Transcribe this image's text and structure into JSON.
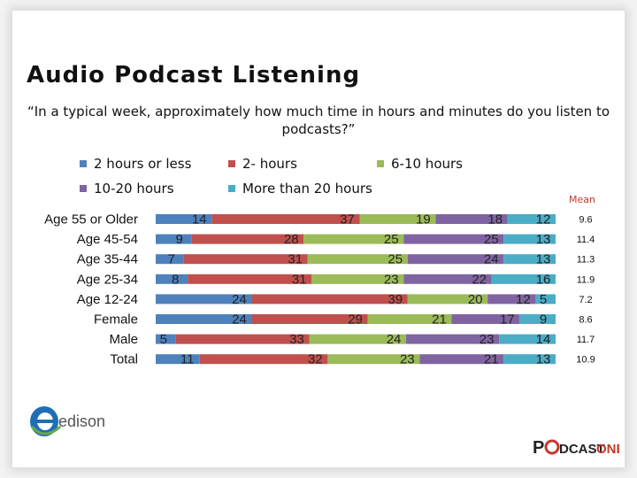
{
  "slide": {
    "title": "Audio Podcast Listening",
    "subtitle": "“In a typical week, approximately how much time in hours and minutes do you listen to podcasts?”",
    "mean_header": "Mean",
    "logo_left_text": "edison",
    "logo_right_text_1": "P",
    "logo_right_text_2": "DCAST",
    "logo_right_text_3": "ONE"
  },
  "legend": [
    {
      "label": "2 hours or less",
      "color": "#4f81bd"
    },
    {
      "label": "2- hours",
      "color": "#c0504d"
    },
    {
      "label": "6-10 hours",
      "color": "#9bbb59"
    },
    {
      "label": "10-20 hours",
      "color": "#8064a2"
    },
    {
      "label": "More than 20 hours",
      "color": "#4bacc6"
    }
  ],
  "chart_data": {
    "type": "bar",
    "orientation": "horizontal",
    "stacked": true,
    "categories": [
      "Age 55 or Older",
      "Age 45-54",
      "Age 35-44",
      "Age 25-34",
      "Age 12-24",
      "Female",
      "Male",
      "Total"
    ],
    "series": [
      {
        "name": "2 hours or less",
        "values": [
          14,
          9,
          7,
          8,
          24,
          24,
          5,
          11
        ]
      },
      {
        "name": "2- hours",
        "values": [
          37,
          28,
          31,
          31,
          39,
          29,
          33,
          32
        ]
      },
      {
        "name": "6-10 hours",
        "values": [
          19,
          25,
          25,
          23,
          20,
          21,
          24,
          23
        ]
      },
      {
        "name": "10-20 hours",
        "values": [
          18,
          25,
          24,
          22,
          12,
          17,
          23,
          21
        ]
      },
      {
        "name": "More than 20 hours",
        "values": [
          12,
          13,
          13,
          16,
          5,
          9,
          14,
          13
        ]
      }
    ],
    "colors": [
      "#4f81bd",
      "#c0504d",
      "#9bbb59",
      "#8064a2",
      "#4bacc6"
    ],
    "mean": [
      "9.6",
      "11.4",
      "11.3",
      "11.9",
      "7.2",
      "8.6",
      "11.7",
      "10.9"
    ],
    "legend_position": "top",
    "grid": false
  }
}
